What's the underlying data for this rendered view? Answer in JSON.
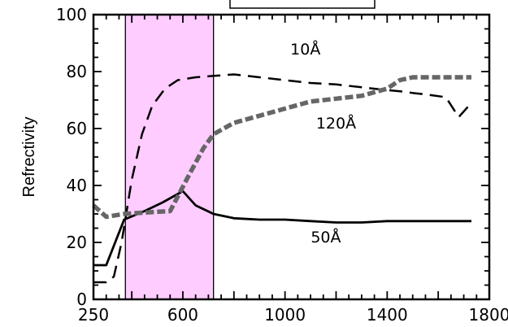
{
  "chart_data": {
    "type": "line",
    "title": "",
    "xlabel": "",
    "ylabel": "Refrectivity",
    "xlim": [
      250,
      1800
    ],
    "ylim": [
      0,
      100
    ],
    "x_ticks": [
      250,
      600,
      1000,
      1400,
      1800
    ],
    "y_ticks": [
      0,
      20,
      40,
      60,
      80,
      100
    ],
    "x_tick_labels": [
      "250",
      "600",
      "1000",
      "1400",
      "1800"
    ],
    "y_tick_labels": [
      "0",
      "20",
      "40",
      "60",
      "80",
      "100"
    ],
    "grid": false,
    "highlight_band": {
      "x_start": 375,
      "x_end": 720,
      "color": "#ffccff"
    },
    "series": [
      {
        "name": "10Å",
        "style": "dashed",
        "color": "#000000",
        "points": [
          [
            250,
            6
          ],
          [
            300,
            6
          ],
          [
            330,
            8
          ],
          [
            360,
            20
          ],
          [
            400,
            42
          ],
          [
            440,
            58
          ],
          [
            480,
            68
          ],
          [
            530,
            74
          ],
          [
            580,
            77
          ],
          [
            650,
            78
          ],
          [
            720,
            78.5
          ],
          [
            800,
            79
          ],
          [
            900,
            78
          ],
          [
            1000,
            77
          ],
          [
            1100,
            76
          ],
          [
            1200,
            75.5
          ],
          [
            1300,
            74.5
          ],
          [
            1400,
            73.5
          ],
          [
            1460,
            73
          ],
          [
            1500,
            72.5
          ],
          [
            1550,
            72
          ],
          [
            1630,
            71
          ],
          [
            1680,
            64
          ],
          [
            1730,
            69
          ]
        ]
      },
      {
        "name": "50Å",
        "style": "solid",
        "color": "#000000",
        "points": [
          [
            250,
            12
          ],
          [
            300,
            12
          ],
          [
            370,
            28
          ],
          [
            450,
            31
          ],
          [
            520,
            34
          ],
          [
            600,
            38
          ],
          [
            650,
            33
          ],
          [
            720,
            30
          ],
          [
            800,
            28.5
          ],
          [
            900,
            28
          ],
          [
            1000,
            28
          ],
          [
            1100,
            27.5
          ],
          [
            1200,
            27
          ],
          [
            1300,
            27
          ],
          [
            1400,
            27.5
          ],
          [
            1500,
            27.5
          ],
          [
            1600,
            27.5
          ],
          [
            1730,
            27.5
          ]
        ]
      },
      {
        "name": "120Å",
        "style": "thick-dashed",
        "color": "#666666",
        "points": [
          [
            250,
            33
          ],
          [
            300,
            29
          ],
          [
            370,
            30
          ],
          [
            450,
            30.5
          ],
          [
            550,
            31
          ],
          [
            620,
            43
          ],
          [
            680,
            53
          ],
          [
            720,
            58
          ],
          [
            800,
            62
          ],
          [
            900,
            64.5
          ],
          [
            1000,
            67
          ],
          [
            1100,
            69.5
          ],
          [
            1200,
            70.5
          ],
          [
            1300,
            71.5
          ],
          [
            1400,
            74
          ],
          [
            1450,
            77
          ],
          [
            1500,
            78
          ],
          [
            1600,
            78
          ],
          [
            1730,
            78
          ]
        ]
      }
    ],
    "annotations": [
      {
        "text": "10Å",
        "x": 1080,
        "y": 86
      },
      {
        "text": "120Å",
        "x": 1200,
        "y": 60
      },
      {
        "text": "50Å",
        "x": 1160,
        "y": 20
      }
    ]
  }
}
